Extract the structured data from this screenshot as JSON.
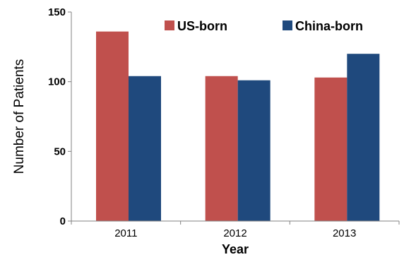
{
  "chart_data": {
    "type": "bar",
    "title": "",
    "xlabel": "Year",
    "ylabel": "Number of Patients",
    "categories": [
      "2011",
      "2012",
      "2013"
    ],
    "series": [
      {
        "name": "US-born",
        "values": [
          136,
          104,
          103
        ],
        "color": "#C0504D"
      },
      {
        "name": "China-born",
        "values": [
          104,
          101,
          120
        ],
        "color": "#1F497D"
      }
    ],
    "ylim": [
      0,
      150
    ],
    "yticks": [
      0,
      50,
      100,
      150
    ],
    "grid": false,
    "legend_position": "top-right"
  }
}
